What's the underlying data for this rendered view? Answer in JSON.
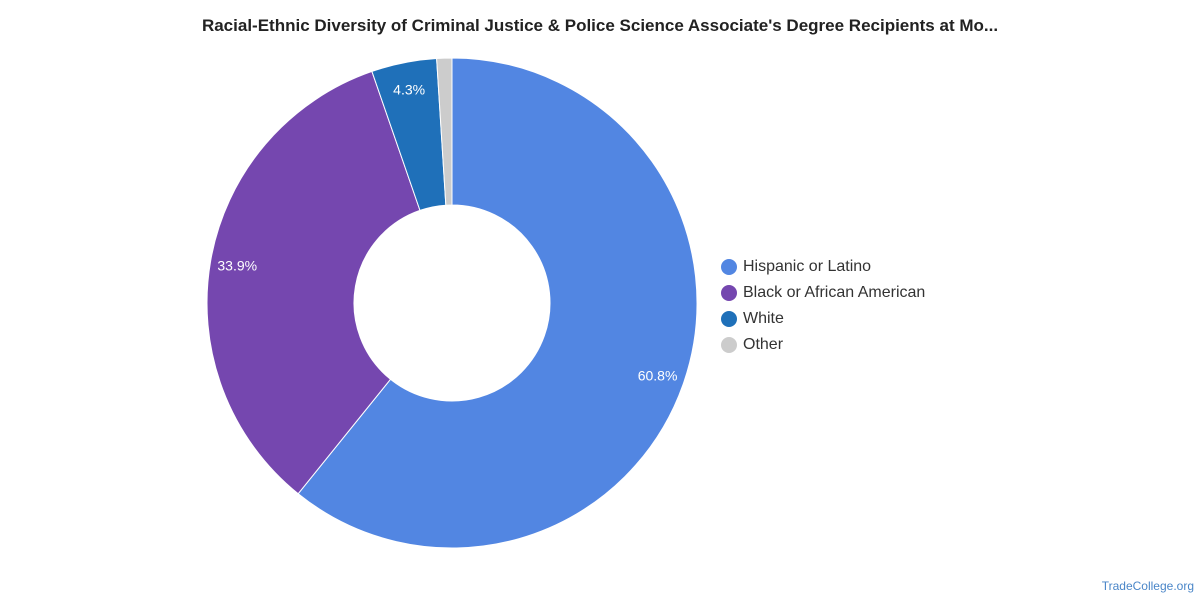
{
  "chart_data": {
    "type": "pie",
    "title": "Racial-Ethnic Diversity of Criminal Justice & Police Science Associate's Degree Recipients at Mo...",
    "donut": true,
    "legend_position": "right",
    "slices": [
      {
        "name": "Hispanic or Latino",
        "value": 60.8,
        "label": "60.8%",
        "color": "#5286e2",
        "show_label": true
      },
      {
        "name": "Black or African American",
        "value": 33.9,
        "label": "33.9%",
        "color": "#7547af",
        "show_label": true
      },
      {
        "name": "White",
        "value": 4.3,
        "label": "4.3%",
        "color": "#1f70b9",
        "show_label": true
      },
      {
        "name": "Other",
        "value": 1.0,
        "label": "",
        "color": "#cccccc",
        "show_label": false
      }
    ]
  },
  "watermark": "TradeCollege.org"
}
